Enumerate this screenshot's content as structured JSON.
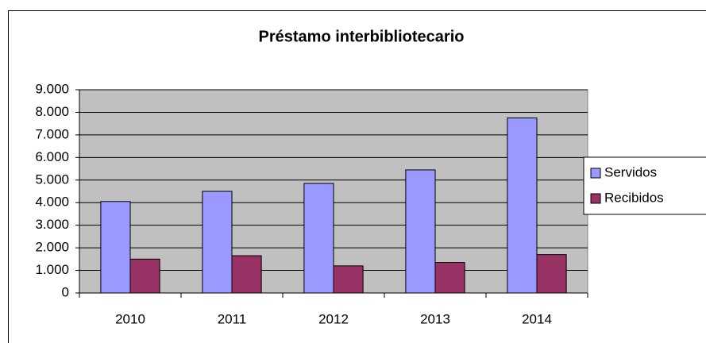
{
  "chart_data": {
    "type": "bar",
    "title": "Préstamo interbibliotecario",
    "categories": [
      "2010",
      "2011",
      "2012",
      "2013",
      "2014"
    ],
    "series": [
      {
        "name": "Servidos",
        "color": "#9999ff",
        "values": [
          4050,
          4500,
          4850,
          5450,
          7750
        ]
      },
      {
        "name": "Recibidos",
        "color": "#993366",
        "values": [
          1500,
          1650,
          1200,
          1350,
          1700
        ]
      }
    ],
    "ylim": [
      0,
      9000
    ],
    "yticks": [
      0,
      {
        "value": 1000,
        "label": "1.000"
      },
      {
        "value": 2000,
        "label": "2.000"
      },
      {
        "value": 3000,
        "label": "3.000"
      },
      {
        "value": 4000,
        "label": "4.000"
      },
      {
        "value": 5000,
        "label": "5.000"
      },
      {
        "value": 6000,
        "label": "6.000"
      },
      {
        "value": 7000,
        "label": "7.000"
      },
      {
        "value": 8000,
        "label": "8.000"
      },
      {
        "value": 9000,
        "label": "9.000"
      }
    ],
    "grid": true,
    "legend": "right"
  }
}
